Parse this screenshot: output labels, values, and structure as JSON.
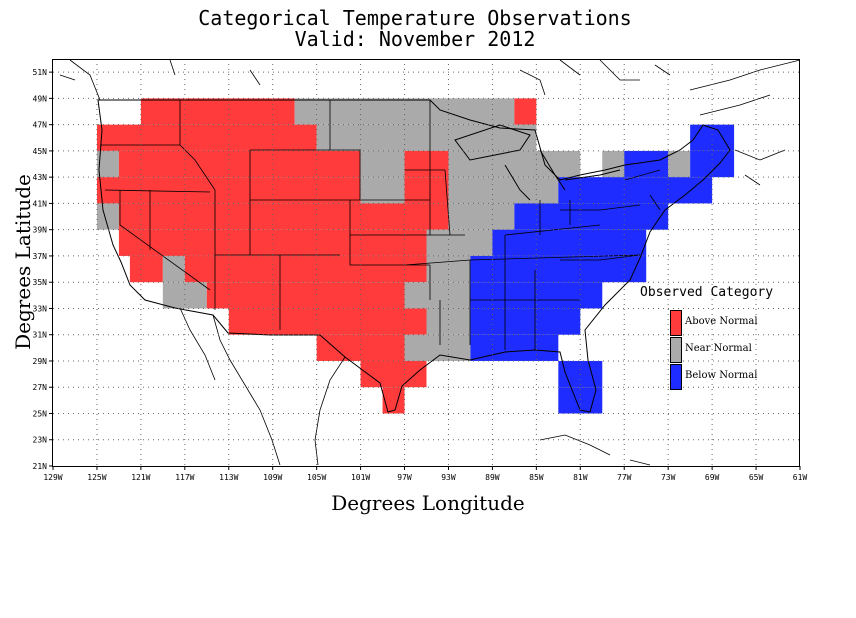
{
  "title": {
    "line1": "Categorical Temperature Observations",
    "line2": "Valid: November 2012"
  },
  "axes": {
    "xlabel": "Degrees Longitude",
    "ylabel": "Degrees Latitude",
    "lon_range": [
      -129,
      -61
    ],
    "lat_range": [
      21,
      52
    ],
    "lon_ticks": [
      "129W",
      "125W",
      "121W",
      "117W",
      "113W",
      "109W",
      "105W",
      "101W",
      "97W",
      "93W",
      "89W",
      "85W",
      "81W",
      "77W",
      "73W",
      "69W",
      "65W",
      "61W"
    ],
    "lat_ticks": [
      "21N",
      "23N",
      "25N",
      "27N",
      "29N",
      "31N",
      "33N",
      "35N",
      "37N",
      "39N",
      "41N",
      "43N",
      "45N",
      "47N",
      "49N",
      "51N"
    ],
    "grid": true
  },
  "legend": {
    "title": "Observed Category",
    "placement": "right",
    "items": [
      {
        "label": "Above Normal",
        "color": "#ff3b3b"
      },
      {
        "label": "Near Normal",
        "color": "#aaaaaa"
      },
      {
        "label": "Below Normal",
        "color": "#1e2cff"
      }
    ]
  },
  "categories": {
    "A": "Above Normal",
    "N": "Near Normal",
    "B": "Below Normal"
  },
  "grid_cells": {
    "cell_size_degrees": 2,
    "rows": [
      {
        "lat": 48,
        "runs": [
          {
            "cat": "A",
            "from": -121,
            "to": -107
          },
          {
            "cat": "N",
            "from": -107,
            "to": -87
          },
          {
            "cat": "A",
            "from": -87,
            "to": -85
          }
        ]
      },
      {
        "lat": 46,
        "runs": [
          {
            "cat": "A",
            "from": -125,
            "to": -105
          },
          {
            "cat": "N",
            "from": -105,
            "to": -85
          },
          {
            "cat": "B",
            "from": -71,
            "to": -67
          }
        ]
      },
      {
        "lat": 44,
        "runs": [
          {
            "cat": "N",
            "from": -125,
            "to": -123
          },
          {
            "cat": "A",
            "from": -123,
            "to": -101
          },
          {
            "cat": "N",
            "from": -101,
            "to": -97
          },
          {
            "cat": "A",
            "from": -97,
            "to": -93
          },
          {
            "cat": "N",
            "from": -93,
            "to": -81
          },
          {
            "cat": "N",
            "from": -79,
            "to": -77
          },
          {
            "cat": "B",
            "from": -77,
            "to": -73
          },
          {
            "cat": "N",
            "from": -73,
            "to": -71
          },
          {
            "cat": "B",
            "from": -71,
            "to": -67
          }
        ]
      },
      {
        "lat": 42,
        "runs": [
          {
            "cat": "A",
            "from": -125,
            "to": -101
          },
          {
            "cat": "N",
            "from": -101,
            "to": -97
          },
          {
            "cat": "A",
            "from": -97,
            "to": -93
          },
          {
            "cat": "N",
            "from": -93,
            "to": -83
          },
          {
            "cat": "B",
            "from": -83,
            "to": -69
          }
        ]
      },
      {
        "lat": 40,
        "runs": [
          {
            "cat": "N",
            "from": -125,
            "to": -123
          },
          {
            "cat": "A",
            "from": -123,
            "to": -93
          },
          {
            "cat": "N",
            "from": -93,
            "to": -87
          },
          {
            "cat": "B",
            "from": -87,
            "to": -73
          }
        ]
      },
      {
        "lat": 38,
        "runs": [
          {
            "cat": "A",
            "from": -123,
            "to": -95
          },
          {
            "cat": "N",
            "from": -95,
            "to": -89
          },
          {
            "cat": "B",
            "from": -89,
            "to": -75
          }
        ]
      },
      {
        "lat": 36,
        "runs": [
          {
            "cat": "A",
            "from": -122,
            "to": -119
          },
          {
            "cat": "N",
            "from": -119,
            "to": -117
          },
          {
            "cat": "A",
            "from": -117,
            "to": -95
          },
          {
            "cat": "N",
            "from": -95,
            "to": -91
          },
          {
            "cat": "B",
            "from": -91,
            "to": -75
          }
        ]
      },
      {
        "lat": 34,
        "runs": [
          {
            "cat": "N",
            "from": -119,
            "to": -115
          },
          {
            "cat": "A",
            "from": -115,
            "to": -97
          },
          {
            "cat": "N",
            "from": -97,
            "to": -91
          },
          {
            "cat": "B",
            "from": -91,
            "to": -79
          }
        ]
      },
      {
        "lat": 32,
        "runs": [
          {
            "cat": "A",
            "from": -113,
            "to": -95
          },
          {
            "cat": "N",
            "from": -95,
            "to": -91
          },
          {
            "cat": "B",
            "from": -91,
            "to": -81
          }
        ]
      },
      {
        "lat": 30,
        "runs": [
          {
            "cat": "A",
            "from": -105,
            "to": -97
          },
          {
            "cat": "N",
            "from": -97,
            "to": -91
          },
          {
            "cat": "B",
            "from": -91,
            "to": -83
          }
        ]
      },
      {
        "lat": 28,
        "runs": [
          {
            "cat": "A",
            "from": -101,
            "to": -95
          },
          {
            "cat": "B",
            "from": -83,
            "to": -79
          }
        ]
      },
      {
        "lat": 26,
        "runs": [
          {
            "cat": "A",
            "from": -99,
            "to": -97
          },
          {
            "cat": "B",
            "from": -83,
            "to": -79
          }
        ]
      }
    ]
  }
}
